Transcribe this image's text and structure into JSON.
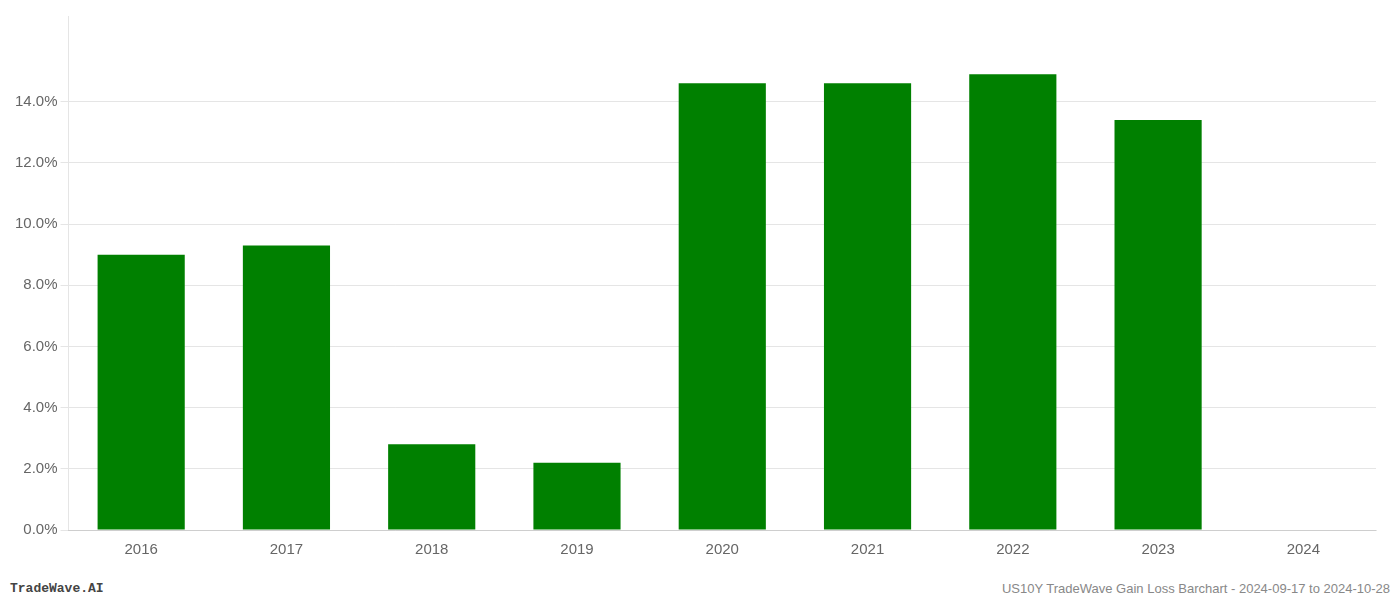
{
  "chart_data": {
    "type": "bar",
    "categories": [
      "2016",
      "2017",
      "2018",
      "2019",
      "2020",
      "2021",
      "2022",
      "2023",
      "2024"
    ],
    "values": [
      0.09,
      0.093,
      0.028,
      0.022,
      0.146,
      0.146,
      0.149,
      0.134,
      null
    ],
    "color": "#008000",
    "ylim": [
      0,
      0.168
    ],
    "yticks": [
      {
        "value": 0.0,
        "label": "0.0%"
      },
      {
        "value": 0.02,
        "label": "2.0%"
      },
      {
        "value": 0.04,
        "label": "4.0%"
      },
      {
        "value": 0.06,
        "label": "6.0%"
      },
      {
        "value": 0.08,
        "label": "8.0%"
      },
      {
        "value": 0.1,
        "label": "10.0%"
      },
      {
        "value": 0.12,
        "label": "12.0%"
      },
      {
        "value": 0.14,
        "label": "14.0%"
      }
    ],
    "grid": true,
    "annotations": [
      "TradeWave.AI",
      "US10Y TradeWave Gain Loss Barchart - 2024-09-17 to 2024-10-28"
    ]
  }
}
